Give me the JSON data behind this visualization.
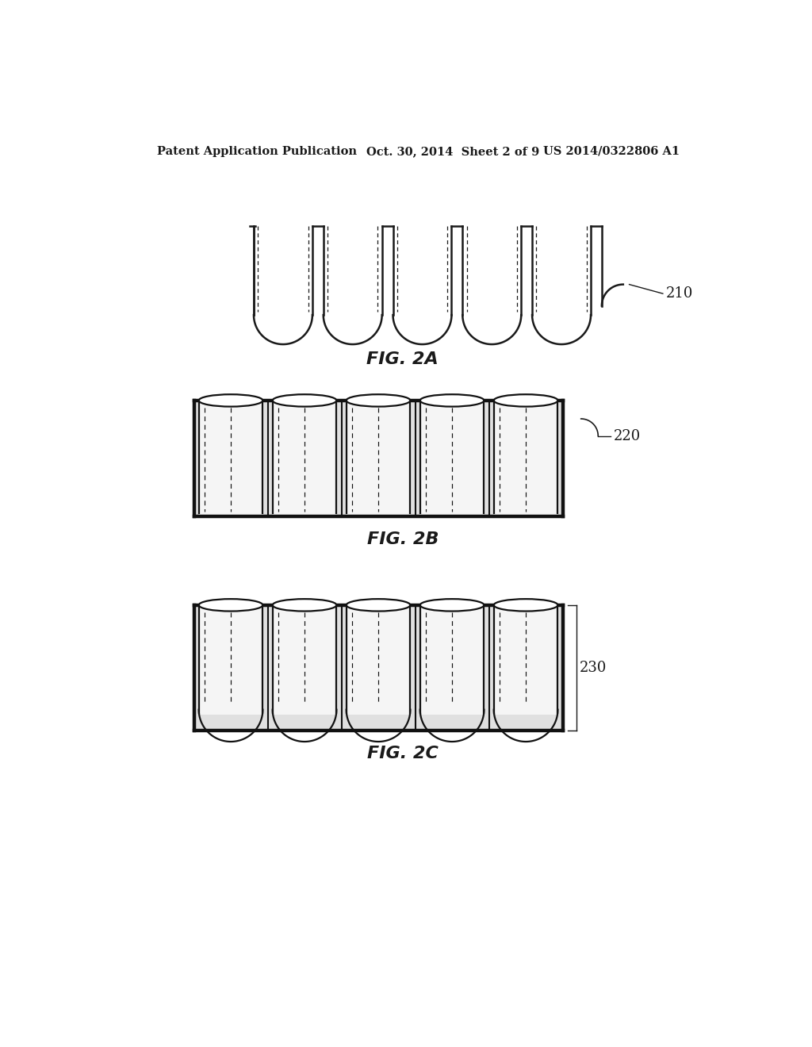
{
  "title_left": "Patent Application Publication",
  "title_mid": "Oct. 30, 2014  Sheet 2 of 9",
  "title_right": "US 2014/0322806 A1",
  "fig_labels": [
    "FIG. 2A",
    "FIG. 2B",
    "FIG. 2C"
  ],
  "ref_labels": [
    "210",
    "220",
    "230"
  ],
  "bg_color": "#ffffff",
  "line_color": "#1a1a1a",
  "dark_color": "#111111",
  "gray_fill": "#c8c8c8",
  "num_wells_2a": 5,
  "num_wells_2b": 5,
  "num_wells_2c": 5,
  "header_fontsize": 10.5,
  "label_fontsize": 16,
  "ref_fontsize": 13
}
